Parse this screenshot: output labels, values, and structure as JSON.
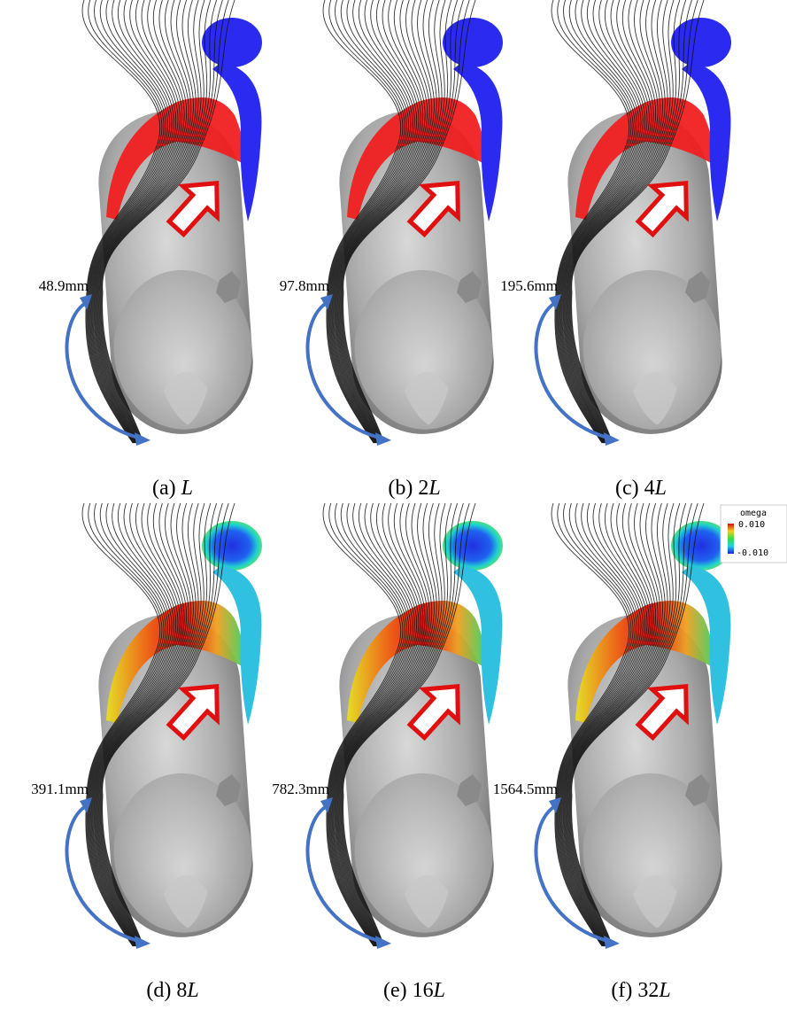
{
  "length_symbol": "L",
  "panels": [
    {
      "label": "(a)",
      "length_label": "48.9mm"
    },
    {
      "label": "(b)",
      "multiplier": "2",
      "length_label": "97.8mm"
    },
    {
      "label": "(c)",
      "multiplier": "4",
      "length_label": "195.6mm"
    },
    {
      "label": "(d)",
      "multiplier": "8",
      "length_label": "391.1mm"
    },
    {
      "label": "(e)",
      "multiplier": "16",
      "length_label": "782.3mm"
    },
    {
      "label": "(f)",
      "multiplier": "32",
      "length_label": "1564.5mm"
    }
  ],
  "colorbar": {
    "title": "omega",
    "max_label": "0.010",
    "min_label": "-0.010"
  }
}
